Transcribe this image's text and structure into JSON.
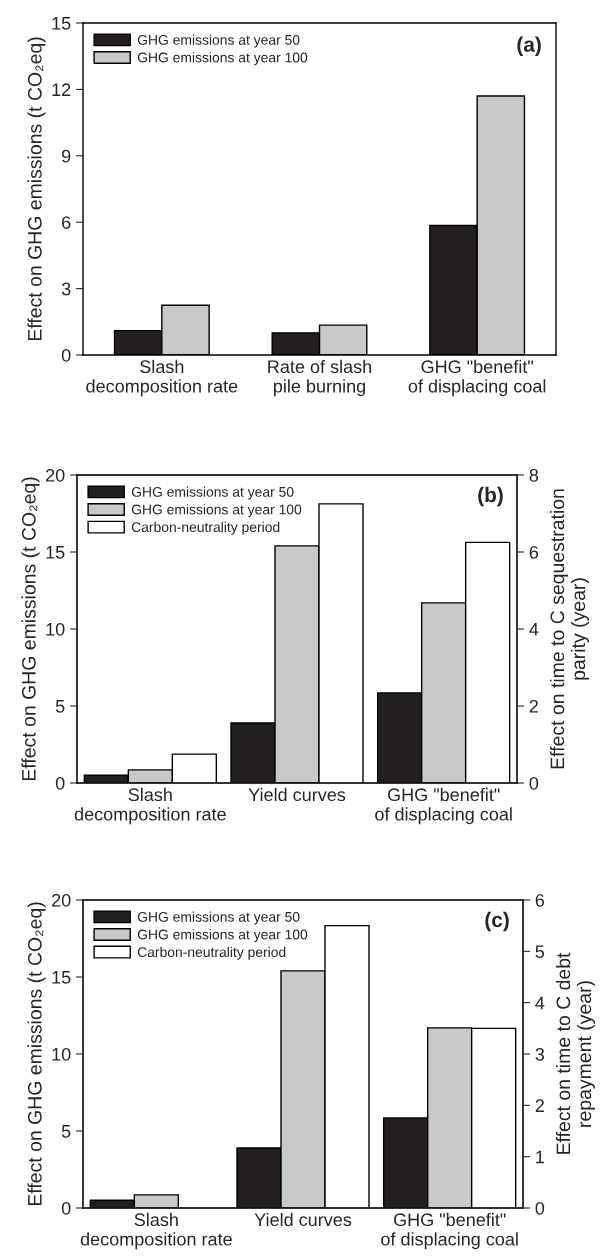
{
  "chart_data": [
    {
      "type": "bar",
      "categories": [
        "Slash\ndecomposition rate",
        "Rate of slash\npile burning",
        "GHG \"benefit\"\nof displacing coal"
      ],
      "ylabel": "Effect on GHG emissions (t CO₂eq)",
      "ylim": [
        0,
        15
      ],
      "yticks": [
        0,
        3,
        6,
        9,
        12,
        15
      ],
      "legend": "top left",
      "grid": false,
      "annotations": [
        "(a)"
      ],
      "series": [
        {
          "name": "GHG emissions at year 50",
          "color": "#231f20",
          "values": [
            1.1,
            1.0,
            5.85
          ]
        },
        {
          "name": "GHG emissions at year 100",
          "color": "#c8c9cb",
          "values": [
            2.25,
            1.35,
            11.7
          ]
        }
      ]
    },
    {
      "type": "bar",
      "categories": [
        "Slash\ndecomposition rate",
        "Yield curves",
        "GHG \"benefit\"\nof displacing coal"
      ],
      "ylabel": "Effect on GHG emissions (t CO₂eq)",
      "y2label": "Effect on time to C sequestration\nparity (year)",
      "ylim": [
        0,
        20
      ],
      "yticks": [
        0,
        5,
        10,
        15,
        20
      ],
      "y2lim": [
        0,
        8
      ],
      "y2ticks": [
        0,
        2,
        4,
        6,
        8
      ],
      "legend": "top left",
      "grid": false,
      "annotations": [
        "(b)"
      ],
      "series": [
        {
          "name": "GHG emissions at year 50",
          "color": "#231f20",
          "values": [
            0.5,
            3.9,
            5.85
          ]
        },
        {
          "name": "GHG emissions at year 100",
          "color": "#c8c9cb",
          "values": [
            0.85,
            15.4,
            11.7
          ]
        },
        {
          "name": "Carbon-neutrality period",
          "color": "#ffffff",
          "axis": "y2",
          "values": [
            0.75,
            7.25,
            6.25
          ]
        }
      ]
    },
    {
      "type": "bar",
      "categories": [
        "Slash\ndecomposition rate",
        "Yield curves",
        "GHG \"benefit\"\nof displacing coal"
      ],
      "ylabel": "Effect on GHG emissions (t CO₂eq)",
      "y2label": "Effect on time to C debt\nrepayment (year)",
      "ylim": [
        0,
        20
      ],
      "yticks": [
        0,
        5,
        10,
        15,
        20
      ],
      "y2lim": [
        0,
        6
      ],
      "y2ticks": [
        0,
        1,
        2,
        3,
        4,
        5,
        6
      ],
      "legend": "top left",
      "grid": false,
      "annotations": [
        "(c)"
      ],
      "series": [
        {
          "name": "GHG emissions at year 50",
          "color": "#231f20",
          "values": [
            0.5,
            3.9,
            5.85
          ]
        },
        {
          "name": "GHG emissions at year 100",
          "color": "#c8c9cb",
          "values": [
            0.85,
            15.4,
            11.7
          ]
        },
        {
          "name": "Carbon-neutrality period",
          "color": "#ffffff",
          "axis": "y2",
          "values": [
            null,
            5.5,
            3.5
          ]
        }
      ]
    }
  ]
}
